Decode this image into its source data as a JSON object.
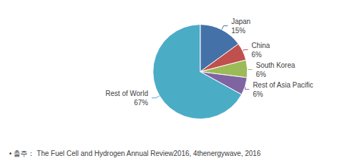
{
  "chart_data": {
    "type": "pie",
    "categories": [
      "Japan",
      "China",
      "South Korea",
      "Rest of Asia Pacific",
      "Rest of World"
    ],
    "values": [
      15,
      6,
      6,
      6,
      67
    ],
    "value_labels": [
      "15%",
      "6%",
      "6%",
      "6%",
      "67%"
    ],
    "colors": [
      "#4472a8",
      "#c0504d",
      "#9bbb59",
      "#8064a2",
      "#4bacc6"
    ],
    "data_labels": true,
    "legend": false,
    "annotations": [
      "• 출주： The Fuel Cell and Hydrogen Annual Review2016, 4thenergywave, 2016"
    ]
  }
}
